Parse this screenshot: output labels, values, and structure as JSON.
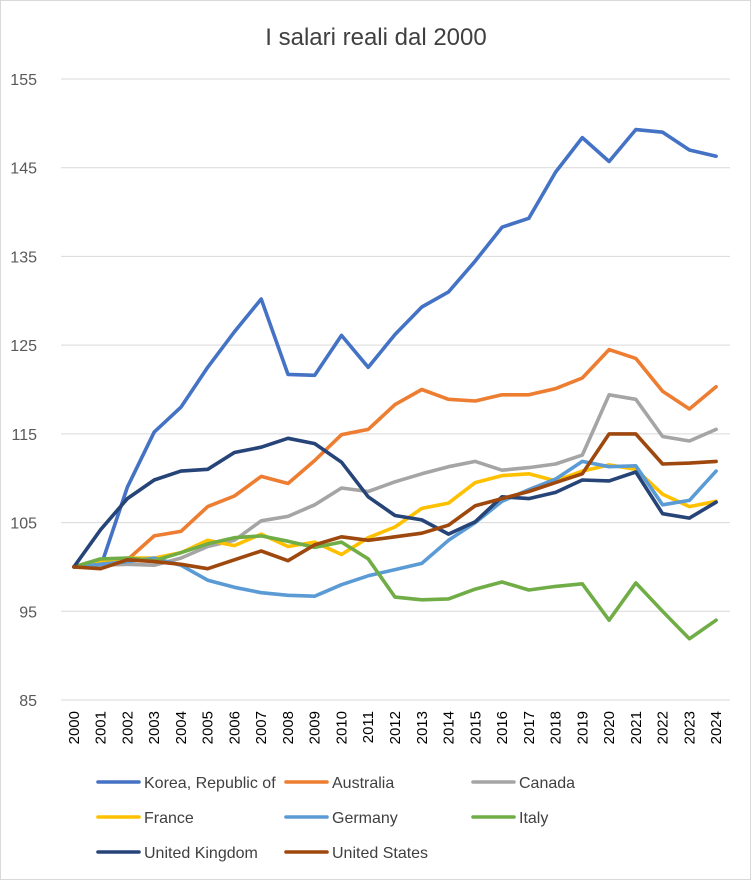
{
  "chart_data": {
    "type": "line",
    "title": "I salari reali dal 2000",
    "xlabel": "",
    "ylabel": "",
    "ylim": [
      85,
      155
    ],
    "yticks": [
      85,
      95,
      105,
      115,
      125,
      135,
      145,
      155
    ],
    "ytick_labels": [
      "85",
      "95",
      "105",
      "115",
      "125",
      "135",
      "145",
      "155"
    ],
    "grid": true,
    "legend_position": "bottom",
    "categories": [
      "2000",
      "2001",
      "2002",
      "2003",
      "2004",
      "2005",
      "2006",
      "2007",
      "2008",
      "2009",
      "2010",
      "2011",
      "2012",
      "2013",
      "2014",
      "2015",
      "2016",
      "2017",
      "2018",
      "2019",
      "2020",
      "2021",
      "2022",
      "2023",
      "2024"
    ],
    "series": [
      {
        "name": "Korea, Republic of",
        "color": "#4472C4",
        "values": [
          100,
          100,
          109,
          115.2,
          118,
          122.5,
          126.5,
          130.2,
          121.7,
          121.6,
          126.1,
          122.5,
          126.2,
          129.3,
          131,
          134.5,
          138.3,
          139.3,
          144.5,
          148.4,
          145.7,
          149.3,
          149,
          147,
          146.3
        ]
      },
      {
        "name": "Australia",
        "color": "#ED7D31",
        "values": [
          100,
          100.3,
          100.8,
          103.5,
          104,
          106.8,
          108,
          110.2,
          109.4,
          112,
          114.9,
          115.5,
          118.3,
          120,
          118.9,
          118.7,
          119.4,
          119.4,
          120.1,
          121.3,
          124.5,
          123.5,
          119.8,
          117.8,
          120.3
        ]
      },
      {
        "name": "Canada",
        "color": "#A5A5A5",
        "values": [
          100,
          100.2,
          100.3,
          100.2,
          101,
          102.3,
          103,
          105.2,
          105.7,
          107,
          108.9,
          108.5,
          109.6,
          110.5,
          111.3,
          111.9,
          110.9,
          111.2,
          111.6,
          112.6,
          119.4,
          118.9,
          114.7,
          114.2,
          115.5
        ]
      },
      {
        "name": "France",
        "color": "#FFC000",
        "values": [
          100,
          100.7,
          101,
          101,
          101.6,
          103,
          102.4,
          103.7,
          102.3,
          102.8,
          101.4,
          103.3,
          104.5,
          106.6,
          107.2,
          109.5,
          110.3,
          110.5,
          109.7,
          110.8,
          111.5,
          111,
          108.2,
          106.8,
          107.4
        ]
      },
      {
        "name": "Germany",
        "color": "#5B9BD5",
        "values": [
          100,
          100.3,
          100.6,
          101,
          100.2,
          98.5,
          97.7,
          97.1,
          96.8,
          96.7,
          98,
          99,
          99.7,
          100.4,
          103,
          105,
          107.4,
          108.7,
          109.9,
          111.9,
          111.3,
          111.4,
          107,
          107.5,
          110.8
        ]
      },
      {
        "name": "Italy",
        "color": "#70AD47",
        "values": [
          100,
          100.9,
          101,
          100.7,
          101.6,
          102.6,
          103.3,
          103.5,
          102.9,
          102.2,
          102.8,
          100.9,
          96.6,
          96.3,
          96.4,
          97.5,
          98.3,
          97.4,
          97.8,
          98.1,
          94,
          98.2,
          95,
          91.9,
          94
        ]
      },
      {
        "name": "United Kingdom",
        "color": "#264478",
        "values": [
          100,
          104.2,
          107.7,
          109.8,
          110.8,
          111,
          112.9,
          113.5,
          114.5,
          113.9,
          111.8,
          107.9,
          105.8,
          105.3,
          103.7,
          105.1,
          107.9,
          107.7,
          108.4,
          109.8,
          109.7,
          110.7,
          106,
          105.5,
          107.3
        ]
      },
      {
        "name": "United States",
        "color": "#9E480E",
        "values": [
          100,
          99.8,
          100.8,
          100.6,
          100.3,
          99.8,
          100.8,
          101.8,
          100.7,
          102.5,
          103.4,
          103,
          103.4,
          103.8,
          104.7,
          106.9,
          107.7,
          108.5,
          109.5,
          110.5,
          115,
          115,
          111.6,
          111.7,
          111.9
        ]
      }
    ]
  }
}
